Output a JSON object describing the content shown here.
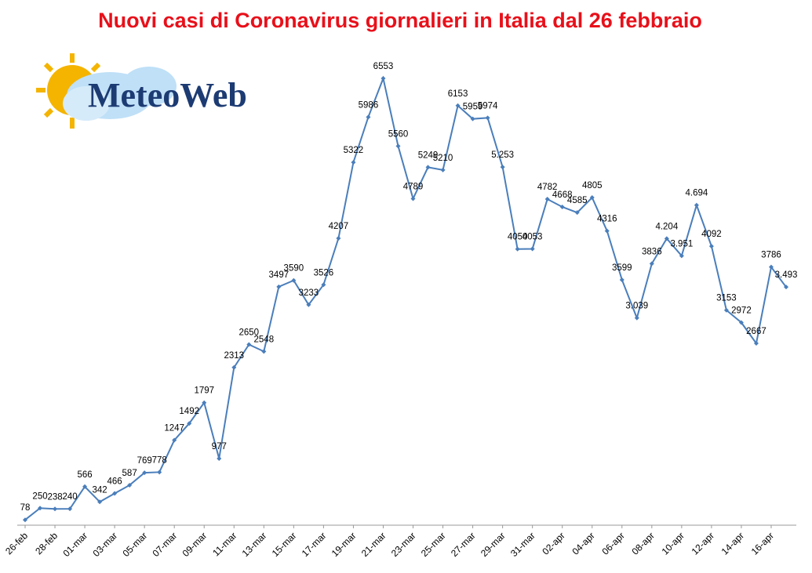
{
  "logo": "MeteoWeb",
  "chart_data": {
    "type": "line",
    "title": "Nuovi casi di Coronavirus giornalieri in Italia dal 26 febbraio",
    "categories": [
      "26-feb",
      null,
      "28-feb",
      null,
      "01-mar",
      null,
      "03-mar",
      null,
      "05-mar",
      null,
      "07-mar",
      null,
      "09-mar",
      null,
      "11-mar",
      null,
      "13-mar",
      null,
      "15-mar",
      null,
      "17-mar",
      null,
      "19-mar",
      null,
      "21-mar",
      null,
      "23-mar",
      null,
      "25-mar",
      null,
      "27-mar",
      null,
      "29-mar",
      null,
      "31-mar",
      null,
      "02-apr",
      null,
      "04-apr",
      null,
      "06-apr",
      null,
      "08-apr",
      null,
      "10-apr",
      null,
      "12-apr",
      null,
      "14-apr",
      null,
      "16-apr",
      null
    ],
    "series": [
      {
        "color": "#4a7ebb",
        "values": [
          78,
          250,
          238,
          240,
          566,
          342,
          466,
          587,
          769,
          778,
          1247,
          1492,
          1797,
          977,
          2313,
          2650,
          2548,
          3497,
          3590,
          3233,
          3526,
          4207,
          5322,
          5986,
          6553,
          5560,
          4789,
          5249,
          5210,
          6153,
          5959,
          5974,
          5253,
          4050,
          4053,
          4782,
          4668,
          4585,
          4805,
          4316,
          3599,
          3039,
          3836,
          4204,
          3951,
          4694,
          4092,
          3153,
          2972,
          2667,
          3786,
          3493
        ],
        "value_labels": [
          "78",
          "250",
          "238",
          "240",
          "566",
          "342",
          "466",
          "587",
          "769",
          "778",
          "1247",
          "1492",
          "1797",
          "977",
          "2313",
          "2650",
          "2548",
          "3497",
          "3590",
          "3233",
          "3526",
          "4207",
          "5322",
          "5986",
          "6553",
          "5560",
          "4789",
          "5249",
          "5210",
          "6153",
          "5959",
          "5974",
          "5.253",
          "4050",
          "4053",
          "4782",
          "4668",
          "4585",
          "4805",
          "4316",
          "3599",
          "3.039",
          "3836",
          "4.204",
          "3.951",
          "4.694",
          "4092",
          "3153",
          "2972",
          "2667",
          "3786",
          "3.493"
        ]
      }
    ]
  }
}
